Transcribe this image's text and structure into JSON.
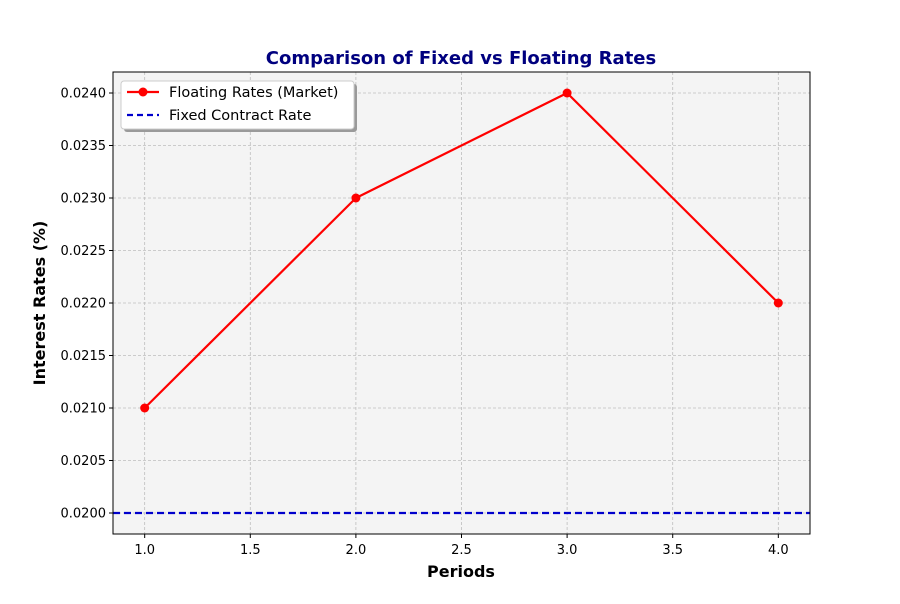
{
  "chart_data": {
    "type": "line",
    "title": "Comparison of Fixed vs Floating Rates",
    "xlabel": "Periods",
    "ylabel": "Interest Rates (%)",
    "xlim": [
      0.85,
      4.15
    ],
    "ylim": [
      0.0198,
      0.0242
    ],
    "x_ticks": [
      "1.0",
      "1.5",
      "2.0",
      "2.5",
      "3.0",
      "3.5",
      "4.0"
    ],
    "y_ticks": [
      "0.0200",
      "0.0205",
      "0.0210",
      "0.0215",
      "0.0220",
      "0.0225",
      "0.0230",
      "0.0235",
      "0.0240"
    ],
    "grid": true,
    "legend_position": "top-left",
    "series": [
      {
        "name": "Floating Rates (Market)",
        "style": "solid-line-with-circle-markers",
        "color": "#ff0000",
        "x": [
          1,
          2,
          3,
          4
        ],
        "y": [
          0.021,
          0.023,
          0.024,
          0.022
        ]
      },
      {
        "name": "Fixed Contract Rate",
        "style": "dashed-horizontal-line",
        "color": "#0000cc",
        "y": 0.02
      }
    ],
    "colors": {
      "plot_background": "#f4f4f4",
      "title": "#00007f"
    }
  }
}
